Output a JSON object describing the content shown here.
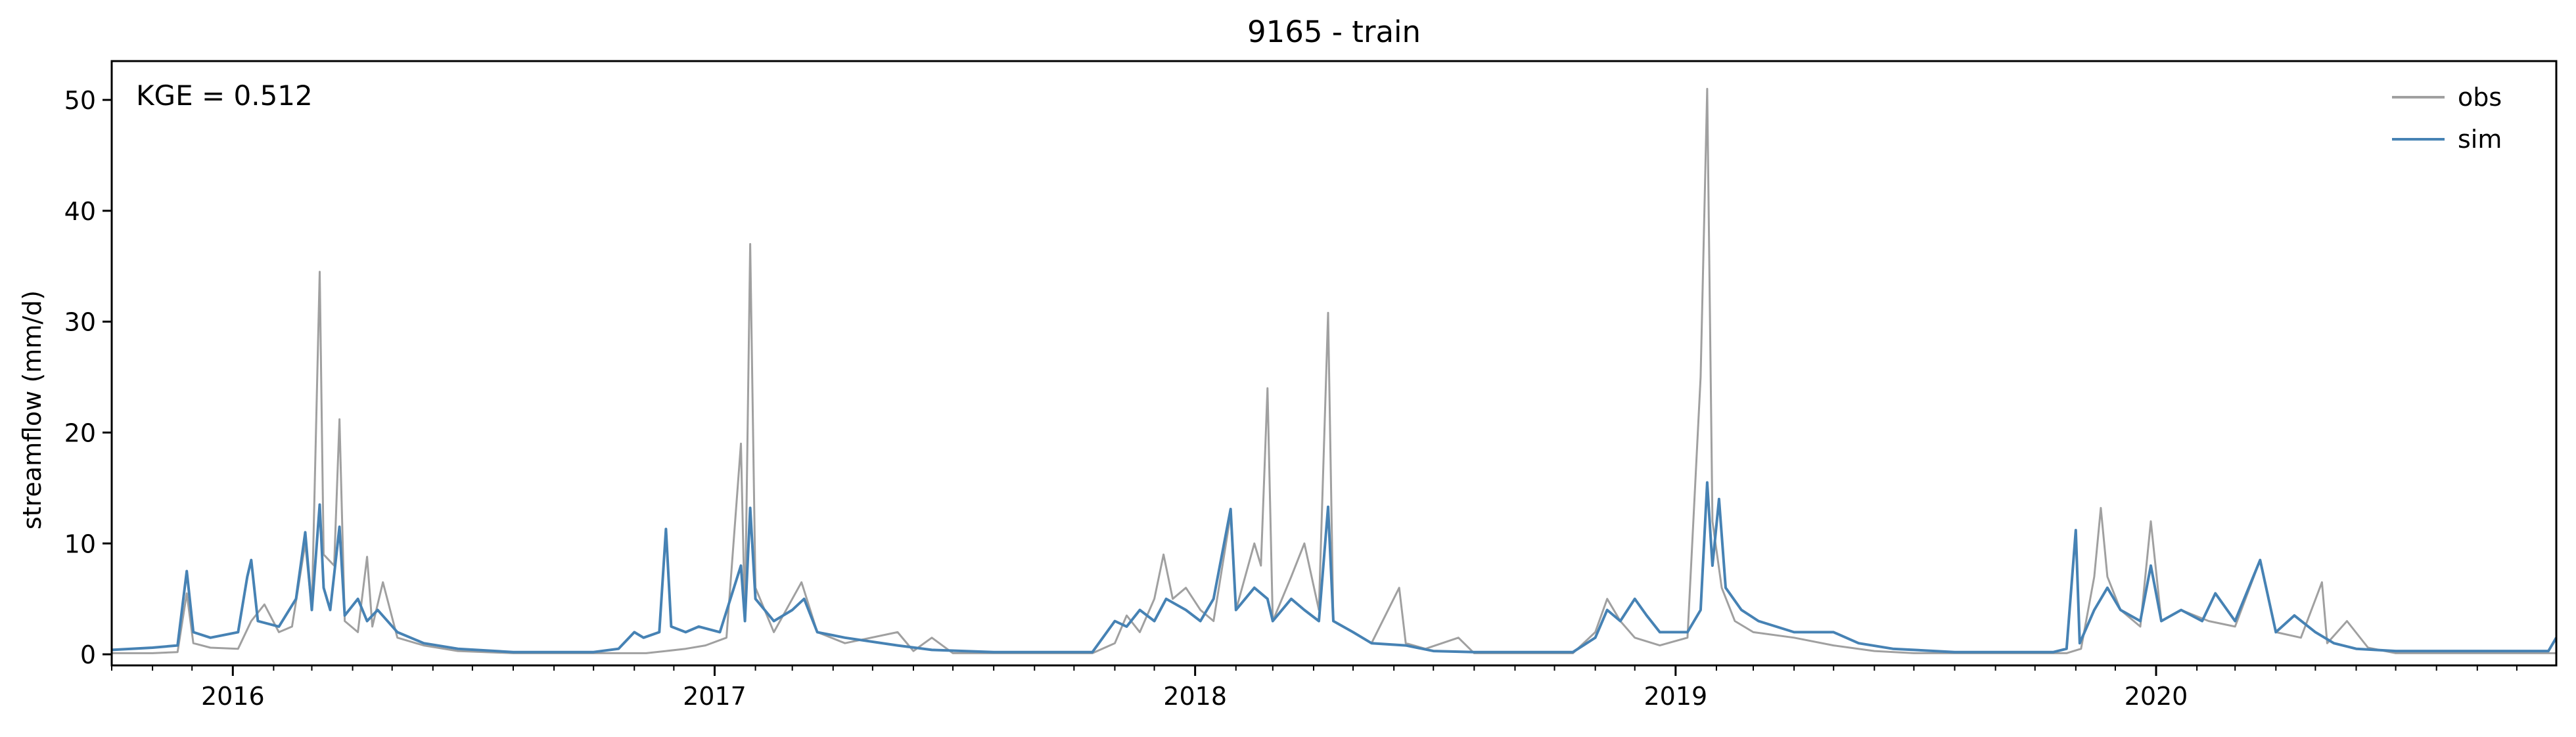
{
  "chart_data": {
    "type": "line",
    "title": "9165 - train",
    "xlabel": "",
    "ylabel": "streamflow (mm/d)",
    "annotation": "KGE = 0.512",
    "legend_position": "top-right",
    "grid": false,
    "xlim": [
      "2015-10-01",
      "2020-10-31"
    ],
    "ylim": [
      -1,
      53.5
    ],
    "x_ticks": [
      {
        "date": "2016-01-01",
        "label": "2016"
      },
      {
        "date": "2017-01-01",
        "label": "2017"
      },
      {
        "date": "2018-01-01",
        "label": "2018"
      },
      {
        "date": "2019-01-01",
        "label": "2019"
      },
      {
        "date": "2020-01-01",
        "label": "2020"
      }
    ],
    "y_ticks": [
      0,
      10,
      20,
      30,
      40,
      50
    ],
    "series": [
      {
        "name": "obs",
        "color": "#a0a0a0",
        "points": [
          [
            "2015-10-01",
            0.1
          ],
          [
            "2015-11-01",
            0.1
          ],
          [
            "2015-11-20",
            0.2
          ],
          [
            "2015-11-27",
            5.5
          ],
          [
            "2015-12-02",
            1.0
          ],
          [
            "2015-12-15",
            0.6
          ],
          [
            "2016-01-05",
            0.5
          ],
          [
            "2016-01-15",
            3.0
          ],
          [
            "2016-01-25",
            4.5
          ],
          [
            "2016-02-05",
            2.0
          ],
          [
            "2016-02-15",
            2.5
          ],
          [
            "2016-02-25",
            10.0
          ],
          [
            "2016-03-01",
            4.0
          ],
          [
            "2016-03-07",
            34.5
          ],
          [
            "2016-03-10",
            9.0
          ],
          [
            "2016-03-18",
            8.0
          ],
          [
            "2016-03-22",
            21.2
          ],
          [
            "2016-03-26",
            3.0
          ],
          [
            "2016-04-05",
            2.0
          ],
          [
            "2016-04-12",
            8.8
          ],
          [
            "2016-04-16",
            2.5
          ],
          [
            "2016-04-24",
            6.5
          ],
          [
            "2016-05-05",
            1.5
          ],
          [
            "2016-05-25",
            0.8
          ],
          [
            "2016-06-20",
            0.3
          ],
          [
            "2016-08-01",
            0.1
          ],
          [
            "2016-11-10",
            0.1
          ],
          [
            "2016-11-25",
            0.3
          ],
          [
            "2016-12-10",
            0.5
          ],
          [
            "2016-12-25",
            0.8
          ],
          [
            "2017-01-10",
            1.5
          ],
          [
            "2017-01-21",
            19.0
          ],
          [
            "2017-01-24",
            3.0
          ],
          [
            "2017-01-28",
            37.0
          ],
          [
            "2017-02-01",
            6.0
          ],
          [
            "2017-02-15",
            2.0
          ],
          [
            "2017-03-01",
            5.0
          ],
          [
            "2017-03-08",
            6.5
          ],
          [
            "2017-03-20",
            2.0
          ],
          [
            "2017-04-10",
            1.0
          ],
          [
            "2017-05-20",
            2.0
          ],
          [
            "2017-06-01",
            0.3
          ],
          [
            "2017-06-15",
            1.5
          ],
          [
            "2017-07-01",
            0.1
          ],
          [
            "2017-10-15",
            0.1
          ],
          [
            "2017-11-01",
            1.0
          ],
          [
            "2017-11-10",
            3.5
          ],
          [
            "2017-11-20",
            2.0
          ],
          [
            "2017-12-01",
            5.0
          ],
          [
            "2017-12-08",
            9.0
          ],
          [
            "2017-12-15",
            5.0
          ],
          [
            "2017-12-25",
            6.0
          ],
          [
            "2018-01-05",
            4.0
          ],
          [
            "2018-01-15",
            3.0
          ],
          [
            "2018-01-28",
            12.6
          ],
          [
            "2018-02-01",
            4.0
          ],
          [
            "2018-02-15",
            10.0
          ],
          [
            "2018-02-20",
            8.0
          ],
          [
            "2018-02-25",
            24.0
          ],
          [
            "2018-03-01",
            3.0
          ],
          [
            "2018-03-15",
            7.0
          ],
          [
            "2018-03-25",
            10.0
          ],
          [
            "2018-04-05",
            4.0
          ],
          [
            "2018-04-12",
            30.8
          ],
          [
            "2018-04-16",
            3.0
          ],
          [
            "2018-05-01",
            2.0
          ],
          [
            "2018-05-15",
            1.0
          ],
          [
            "2018-06-05",
            6.0
          ],
          [
            "2018-06-10",
            1.0
          ],
          [
            "2018-06-25",
            0.5
          ],
          [
            "2018-07-20",
            1.5
          ],
          [
            "2018-08-01",
            0.1
          ],
          [
            "2018-10-15",
            0.1
          ],
          [
            "2018-11-01",
            2.0
          ],
          [
            "2018-11-10",
            5.0
          ],
          [
            "2018-11-20",
            3.0
          ],
          [
            "2018-12-01",
            1.5
          ],
          [
            "2018-12-20",
            0.8
          ],
          [
            "2019-01-10",
            1.5
          ],
          [
            "2019-01-20",
            25.0
          ],
          [
            "2019-01-25",
            51.0
          ],
          [
            "2019-01-29",
            12.0
          ],
          [
            "2019-02-05",
            6.0
          ],
          [
            "2019-02-15",
            3.0
          ],
          [
            "2019-03-01",
            2.0
          ],
          [
            "2019-04-01",
            1.5
          ],
          [
            "2019-05-01",
            0.8
          ],
          [
            "2019-06-01",
            0.3
          ],
          [
            "2019-07-01",
            0.1
          ],
          [
            "2019-10-25",
            0.1
          ],
          [
            "2019-11-05",
            0.5
          ],
          [
            "2019-11-15",
            7.0
          ],
          [
            "2019-11-20",
            13.2
          ],
          [
            "2019-11-25",
            7.0
          ],
          [
            "2019-12-05",
            4.0
          ],
          [
            "2019-12-20",
            2.5
          ],
          [
            "2019-12-28",
            12.0
          ],
          [
            "2020-01-05",
            3.0
          ],
          [
            "2020-01-20",
            4.0
          ],
          [
            "2020-02-10",
            3.0
          ],
          [
            "2020-03-01",
            2.5
          ],
          [
            "2020-03-20",
            8.5
          ],
          [
            "2020-04-01",
            2.0
          ],
          [
            "2020-04-20",
            1.5
          ],
          [
            "2020-05-06",
            6.5
          ],
          [
            "2020-05-10",
            1.0
          ],
          [
            "2020-05-25",
            3.0
          ],
          [
            "2020-06-10",
            0.6
          ],
          [
            "2020-07-01",
            0.1
          ],
          [
            "2020-10-31",
            0.1
          ]
        ]
      },
      {
        "name": "sim",
        "color": "#4682b4",
        "points": [
          [
            "2015-10-01",
            0.4
          ],
          [
            "2015-11-01",
            0.6
          ],
          [
            "2015-11-20",
            0.8
          ],
          [
            "2015-11-27",
            7.5
          ],
          [
            "2015-12-02",
            2.0
          ],
          [
            "2015-12-15",
            1.5
          ],
          [
            "2016-01-05",
            2.0
          ],
          [
            "2016-01-12",
            7.0
          ],
          [
            "2016-01-15",
            8.5
          ],
          [
            "2016-01-20",
            3.0
          ],
          [
            "2016-02-05",
            2.5
          ],
          [
            "2016-02-18",
            5.0
          ],
          [
            "2016-02-25",
            11.0
          ],
          [
            "2016-03-01",
            4.0
          ],
          [
            "2016-03-07",
            13.5
          ],
          [
            "2016-03-10",
            6.0
          ],
          [
            "2016-03-15",
            4.0
          ],
          [
            "2016-03-22",
            11.5
          ],
          [
            "2016-03-26",
            3.5
          ],
          [
            "2016-04-05",
            5.0
          ],
          [
            "2016-04-12",
            3.0
          ],
          [
            "2016-04-20",
            4.0
          ],
          [
            "2016-05-05",
            2.0
          ],
          [
            "2016-05-25",
            1.0
          ],
          [
            "2016-06-20",
            0.5
          ],
          [
            "2016-08-01",
            0.2
          ],
          [
            "2016-10-01",
            0.2
          ],
          [
            "2016-10-20",
            0.5
          ],
          [
            "2016-11-01",
            2.0
          ],
          [
            "2016-11-08",
            1.5
          ],
          [
            "2016-11-20",
            2.0
          ],
          [
            "2016-11-25",
            11.3
          ],
          [
            "2016-11-29",
            2.5
          ],
          [
            "2016-12-10",
            2.0
          ],
          [
            "2016-12-20",
            2.5
          ],
          [
            "2017-01-05",
            2.0
          ],
          [
            "2017-01-21",
            8.0
          ],
          [
            "2017-01-24",
            3.0
          ],
          [
            "2017-01-28",
            13.2
          ],
          [
            "2017-02-01",
            5.0
          ],
          [
            "2017-02-15",
            3.0
          ],
          [
            "2017-03-01",
            4.0
          ],
          [
            "2017-03-10",
            5.0
          ],
          [
            "2017-03-20",
            2.0
          ],
          [
            "2017-04-10",
            1.5
          ],
          [
            "2017-05-20",
            0.8
          ],
          [
            "2017-06-15",
            0.4
          ],
          [
            "2017-08-01",
            0.2
          ],
          [
            "2017-10-15",
            0.2
          ],
          [
            "2017-11-01",
            3.0
          ],
          [
            "2017-11-10",
            2.5
          ],
          [
            "2017-11-20",
            4.0
          ],
          [
            "2017-12-01",
            3.0
          ],
          [
            "2017-12-10",
            5.0
          ],
          [
            "2017-12-25",
            4.0
          ],
          [
            "2018-01-05",
            3.0
          ],
          [
            "2018-01-15",
            5.0
          ],
          [
            "2018-01-28",
            13.1
          ],
          [
            "2018-02-01",
            4.0
          ],
          [
            "2018-02-15",
            6.0
          ],
          [
            "2018-02-25",
            5.0
          ],
          [
            "2018-03-01",
            3.0
          ],
          [
            "2018-03-15",
            5.0
          ],
          [
            "2018-03-25",
            4.0
          ],
          [
            "2018-04-05",
            3.0
          ],
          [
            "2018-04-12",
            13.3
          ],
          [
            "2018-04-16",
            3.0
          ],
          [
            "2018-05-01",
            2.0
          ],
          [
            "2018-05-15",
            1.0
          ],
          [
            "2018-06-10",
            0.8
          ],
          [
            "2018-07-01",
            0.3
          ],
          [
            "2018-08-01",
            0.2
          ],
          [
            "2018-10-15",
            0.2
          ],
          [
            "2018-11-01",
            1.5
          ],
          [
            "2018-11-10",
            4.0
          ],
          [
            "2018-11-20",
            3.0
          ],
          [
            "2018-12-01",
            5.0
          ],
          [
            "2018-12-10",
            3.5
          ],
          [
            "2018-12-20",
            2.0
          ],
          [
            "2019-01-10",
            2.0
          ],
          [
            "2019-01-20",
            4.0
          ],
          [
            "2019-01-25",
            15.5
          ],
          [
            "2019-01-29",
            8.0
          ],
          [
            "2019-02-03",
            14.0
          ],
          [
            "2019-02-08",
            6.0
          ],
          [
            "2019-02-20",
            4.0
          ],
          [
            "2019-03-05",
            3.0
          ],
          [
            "2019-04-01",
            2.0
          ],
          [
            "2019-05-01",
            2.0
          ],
          [
            "2019-05-20",
            1.0
          ],
          [
            "2019-06-15",
            0.5
          ],
          [
            "2019-08-01",
            0.2
          ],
          [
            "2019-10-15",
            0.2
          ],
          [
            "2019-10-25",
            0.5
          ],
          [
            "2019-11-01",
            11.2
          ],
          [
            "2019-11-04",
            1.0
          ],
          [
            "2019-11-15",
            4.0
          ],
          [
            "2019-11-25",
            6.0
          ],
          [
            "2019-12-05",
            4.0
          ],
          [
            "2019-12-20",
            3.0
          ],
          [
            "2019-12-28",
            8.0
          ],
          [
            "2020-01-05",
            3.0
          ],
          [
            "2020-01-20",
            4.0
          ],
          [
            "2020-02-05",
            3.0
          ],
          [
            "2020-02-15",
            5.5
          ],
          [
            "2020-03-01",
            3.0
          ],
          [
            "2020-03-20",
            8.5
          ],
          [
            "2020-04-01",
            2.0
          ],
          [
            "2020-04-15",
            3.5
          ],
          [
            "2020-05-01",
            2.0
          ],
          [
            "2020-05-15",
            1.0
          ],
          [
            "2020-06-01",
            0.5
          ],
          [
            "2020-07-01",
            0.3
          ],
          [
            "2020-10-25",
            0.3
          ],
          [
            "2020-10-31",
            1.5
          ]
        ]
      }
    ]
  }
}
